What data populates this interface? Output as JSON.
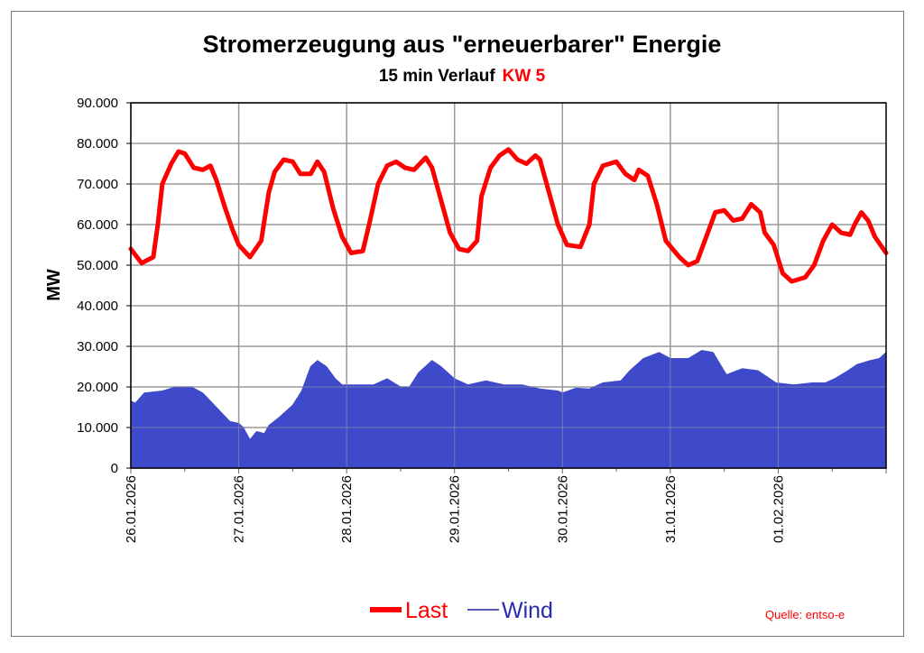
{
  "chart_data": {
    "type": "line",
    "title": "Stromerzeugung aus \"erneuerbarer\" Energie",
    "subtitle": "15 min Verlauf",
    "subtitle_highlight": "KW 5",
    "xlabel": "",
    "ylabel": "MW",
    "ylim": [
      0,
      90000
    ],
    "xlim_hours": [
      0,
      168
    ],
    "yticks": [
      0,
      10000,
      20000,
      30000,
      40000,
      50000,
      60000,
      70000,
      80000,
      90000
    ],
    "ytick_labels": [
      "0",
      "10.000",
      "20.000",
      "30.000",
      "40.000",
      "50.000",
      "60.000",
      "70.000",
      "80.000",
      "90.000"
    ],
    "xtick_labels": [
      "26.01.2026",
      "27.01.2026",
      "28.01.2026",
      "29.01.2026",
      "30.01.2026",
      "31.01.2026",
      "01.02.2026"
    ],
    "grid": true,
    "legend_position": "bottom-center",
    "source": "Quelle: entso-e",
    "colors": {
      "last": "#ff0000",
      "wind": "#3f4acb",
      "highlight": "#ff0000",
      "grid": "#999999"
    },
    "series": [
      {
        "name": "Last",
        "style": "line",
        "x": [
          0,
          2.4,
          5,
          6,
          7,
          9,
          10.6,
          12,
          14,
          16,
          17.7,
          19,
          21,
          22.7,
          24,
          26.5,
          29,
          30.7,
          32,
          34,
          36,
          37.7,
          40,
          41.5,
          43,
          45,
          47,
          49,
          51.6,
          53,
          55,
          57,
          59,
          61,
          63,
          65.6,
          67,
          69,
          71,
          73,
          75,
          77,
          78,
          80,
          82,
          84,
          86,
          88,
          90,
          91,
          93,
          95,
          97,
          100,
          102,
          103,
          105,
          108,
          110,
          112,
          113,
          115,
          117,
          119,
          122,
          124,
          126,
          128,
          130,
          132,
          134,
          136,
          138,
          140,
          141,
          143,
          145,
          147,
          150,
          152,
          154,
          156,
          158,
          160,
          161,
          162.5,
          164,
          165.5,
          168
        ],
        "y": [
          54000,
          50500,
          52000,
          60000,
          70000,
          75000,
          78000,
          77500,
          74000,
          73500,
          74500,
          71000,
          64000,
          58500,
          55000,
          52000,
          56000,
          68000,
          73000,
          76000,
          75500,
          72500,
          72500,
          75500,
          73000,
          64000,
          57000,
          53000,
          53500,
          60000,
          70000,
          74500,
          75500,
          74000,
          73500,
          76500,
          74000,
          66000,
          58000,
          54000,
          53500,
          56000,
          67000,
          74000,
          77000,
          78500,
          76000,
          75000,
          77000,
          76000,
          68000,
          60000,
          55000,
          54500,
          60000,
          70000,
          74500,
          75500,
          72500,
          71000,
          73500,
          72000,
          65000,
          56000,
          52000,
          50000,
          51000,
          57000,
          63000,
          63500,
          61000,
          61500,
          65000,
          63000,
          58000,
          55000,
          48000,
          46000,
          47000,
          50000,
          56000,
          60000,
          58000,
          57500,
          60000,
          63000,
          61000,
          57000,
          53000
        ]
      },
      {
        "name": "Wind",
        "style": "area",
        "x": [
          0,
          1,
          3,
          7,
          10,
          13.5,
          16,
          19,
          22,
          24,
          25,
          26.5,
          28,
          29.7,
          30.7,
          33,
          36,
          38,
          40,
          41.5,
          43.5,
          45.5,
          47,
          50,
          54,
          57,
          60,
          62,
          64,
          67,
          69,
          72,
          75,
          79,
          83,
          87,
          91,
          95,
          96,
          99,
          102,
          105,
          109,
          111,
          114,
          117.5,
          120,
          124,
          127,
          129.5,
          132.5,
          136,
          139.5,
          143.5,
          147.5,
          151.5,
          154.5,
          156.5,
          159.5,
          161.5,
          164.5,
          166.5,
          168
        ],
        "y": [
          16500,
          16000,
          18500,
          19000,
          20000,
          20000,
          18500,
          15000,
          11500,
          11000,
          10000,
          7000,
          9000,
          8500,
          10500,
          12500,
          15500,
          19000,
          25000,
          26500,
          25000,
          22000,
          20500,
          20500,
          20500,
          22000,
          20000,
          20000,
          23500,
          26500,
          25000,
          22000,
          20500,
          21500,
          20500,
          20500,
          19500,
          19000,
          18500,
          19700,
          19500,
          21000,
          21500,
          24000,
          27000,
          28500,
          27000,
          27000,
          29000,
          28500,
          23000,
          24500,
          24000,
          21000,
          20500,
          21000,
          21000,
          22000,
          24000,
          25500,
          26500,
          27000,
          28500
        ]
      }
    ]
  }
}
